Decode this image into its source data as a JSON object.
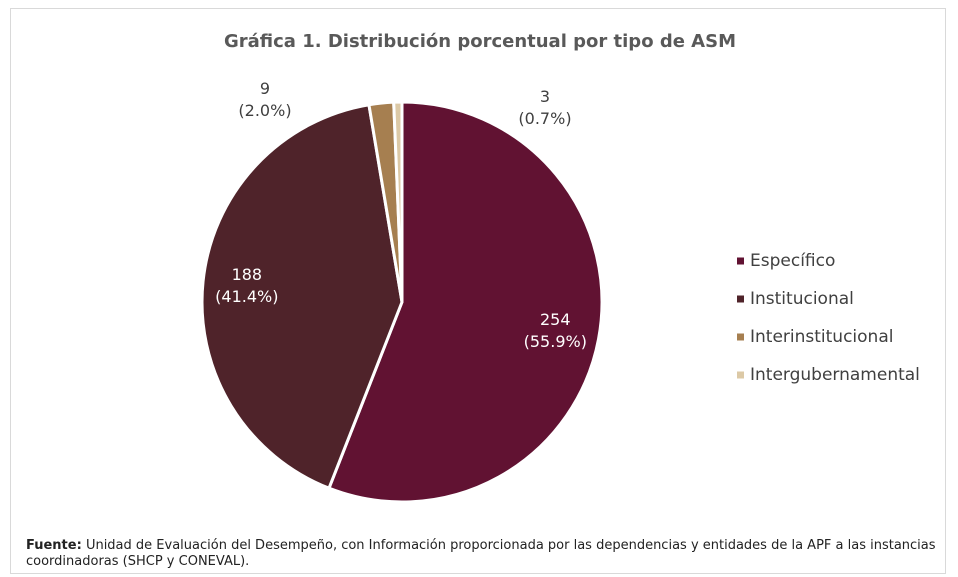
{
  "chart_data": {
    "type": "pie",
    "title": "Gráfica 1. Distribución porcentual por tipo de ASM",
    "categories": [
      "Específico",
      "Institucional",
      "Interinstitucional",
      "Intergubernamental"
    ],
    "values": [
      254,
      188,
      9,
      3
    ],
    "value_labels": [
      "254\n(55.9%)",
      "188\n(41.4%)",
      "9\n(2.0%)",
      "3\n(0.7%)"
    ],
    "colors": [
      "#611232",
      "#4f232a",
      "#a67f50",
      "#dcc9a6"
    ],
    "legend": "right"
  },
  "source": {
    "label": "Fuente:",
    "text": "Unidad de Evaluación del Desempeño, con Información proporcionada por las dependencias y entidades de la APF a las instancias coordinadoras (SHCP y CONEVAL)."
  }
}
